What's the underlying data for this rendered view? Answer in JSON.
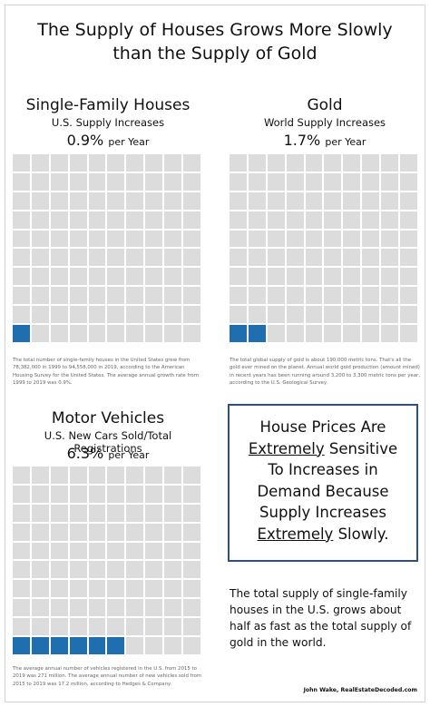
{
  "title_lines": [
    "The Supply of Houses Grows More Slowly",
    "than the Supply of Gold"
  ],
  "chart_data": [
    {
      "type": "waffle",
      "title": "Single-Family Houses",
      "subtitle": "U.S. Supply Increases",
      "value": 0.9,
      "rate_value": "0.9%",
      "rate_unit": "per Year",
      "grid_rows": 10,
      "grid_cols": 10,
      "note": "The total number of single-family houses in the United States grew from 78,382,000 in 1999 to 94,558,000 in 2019, according to the American Housing Survey for the United States. The average annual growth rate from 1999 to 2019 was 0.9%."
    },
    {
      "type": "waffle",
      "title": "Gold",
      "subtitle": "World Supply Increases",
      "value": 1.7,
      "rate_value": "1.7%",
      "rate_unit": "per Year",
      "grid_rows": 10,
      "grid_cols": 10,
      "note": "The total global supply of gold is about 190,000 metric tons. That's all the gold ever mined on the planet. Annual world gold production (amount mined) in recent years has been running around 3,200 to 3,300 metric tons per year, according to the U.S. Geological Survey."
    },
    {
      "type": "waffle",
      "title": "Motor Vehicles",
      "subtitle": "U.S. New Cars Sold/Total Registrations",
      "value": 6.3,
      "rate_value": "6.3%",
      "rate_unit": "per Year",
      "grid_rows": 10,
      "grid_cols": 10,
      "note": "The average annual number of vehicles registered in the U.S. from 2015 to 2019 was 271 million. The average annual number of new vehicles sold from 2015 to 2019 was 17.2 million, according to Hedges & Company."
    }
  ],
  "callout": {
    "line1": "House Prices Are",
    "line2_em": "Extremely",
    "line2_rest": " Sensitive",
    "line3": "To Increases in",
    "line4": "Demand Because",
    "line5": "Supply Increases",
    "line6_em": "Extremely",
    "line6_rest": " Slowly."
  },
  "summary": "The total supply of single-family houses in the U.S. grows about half as fast as the total supply of gold in the world.",
  "credit": "John Wake, RealEstateDecoded.com",
  "colors": {
    "filled": "#1f6fb0",
    "empty": "#dcdcdc",
    "callout_border": "#2c4f8c"
  }
}
